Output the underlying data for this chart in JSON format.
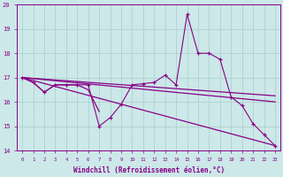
{
  "xlabel": "Windchill (Refroidissement éolien,°C)",
  "background_color": "#cce8e8",
  "grid_color": "#aacccc",
  "line_color": "#880088",
  "xmin": 0,
  "xmax": 23,
  "ymin": 14,
  "ymax": 20,
  "hours": [
    0,
    1,
    2,
    3,
    4,
    5,
    6,
    7,
    8,
    9,
    10,
    11,
    12,
    13,
    14,
    15,
    16,
    17,
    18,
    19,
    20,
    21,
    22,
    23
  ],
  "main_line": [
    17.0,
    16.8,
    16.4,
    16.7,
    16.7,
    16.7,
    16.7,
    15.0,
    15.35,
    15.9,
    16.7,
    16.75,
    16.8,
    17.1,
    16.7,
    19.6,
    18.0,
    18.0,
    17.75,
    16.2,
    15.85,
    15.1,
    14.65,
    14.2
  ],
  "seg_line": [
    17.0,
    16.8,
    16.4,
    16.7,
    16.7,
    16.7,
    16.5,
    15.6
  ],
  "trend_flat1_start": 17.0,
  "trend_flat1_end": 16.25,
  "trend_flat2_start": 17.0,
  "trend_flat2_end": 16.0,
  "trend_steep_start": 17.0,
  "trend_steep_end": 14.2
}
